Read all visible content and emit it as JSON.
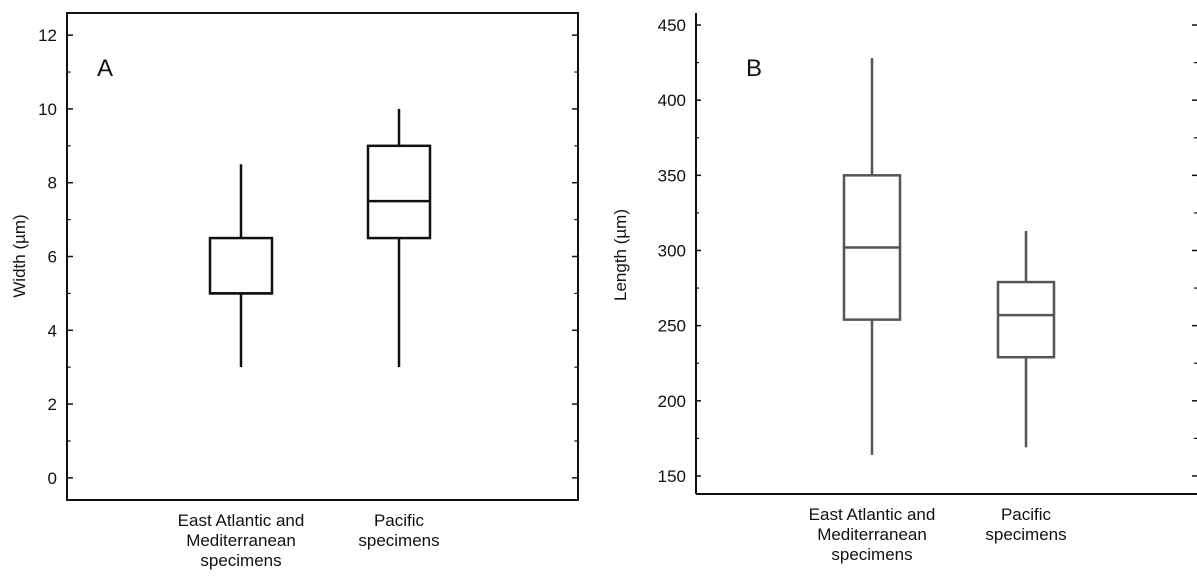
{
  "chart_data": [
    {
      "type": "box",
      "panel_label": "A",
      "ylabel": "Width (µm)",
      "ylim": [
        -0.6,
        12.6
      ],
      "yticks": [
        0,
        2,
        4,
        6,
        8,
        10,
        12
      ],
      "ytick_labels": [
        "0",
        "2",
        "4",
        "6",
        "8",
        "10",
        "12"
      ],
      "color": "#111111",
      "categories": [
        {
          "lines": [
            "East Atlantic and",
            "Mediterranean",
            "specimens"
          ]
        },
        {
          "lines": [
            "Pacific",
            "specimens"
          ]
        }
      ],
      "boxes": [
        {
          "min": 3,
          "q1": 5,
          "median": 5,
          "q3": 6.5,
          "max": 8.5
        },
        {
          "min": 3,
          "q1": 6.5,
          "median": 7.5,
          "q3": 9,
          "max": 10
        }
      ]
    },
    {
      "type": "box",
      "panel_label": "B",
      "ylabel": "Length (µm)",
      "ylim": [
        138,
        458
      ],
      "yticks": [
        150,
        200,
        250,
        300,
        350,
        400,
        450
      ],
      "ytick_labels": [
        "150",
        "200",
        "250",
        "300",
        "350",
        "400",
        "450"
      ],
      "color": "#555555",
      "categories": [
        {
          "lines": [
            "East Atlantic and",
            "Mediterranean",
            "specimens"
          ]
        },
        {
          "lines": [
            "Pacific",
            "specimens"
          ]
        }
      ],
      "boxes": [
        {
          "min": 164,
          "q1": 254,
          "median": 302,
          "q3": 350,
          "max": 428
        },
        {
          "min": 169,
          "q1": 229,
          "median": 257,
          "q3": 279,
          "max": 313
        }
      ]
    }
  ]
}
